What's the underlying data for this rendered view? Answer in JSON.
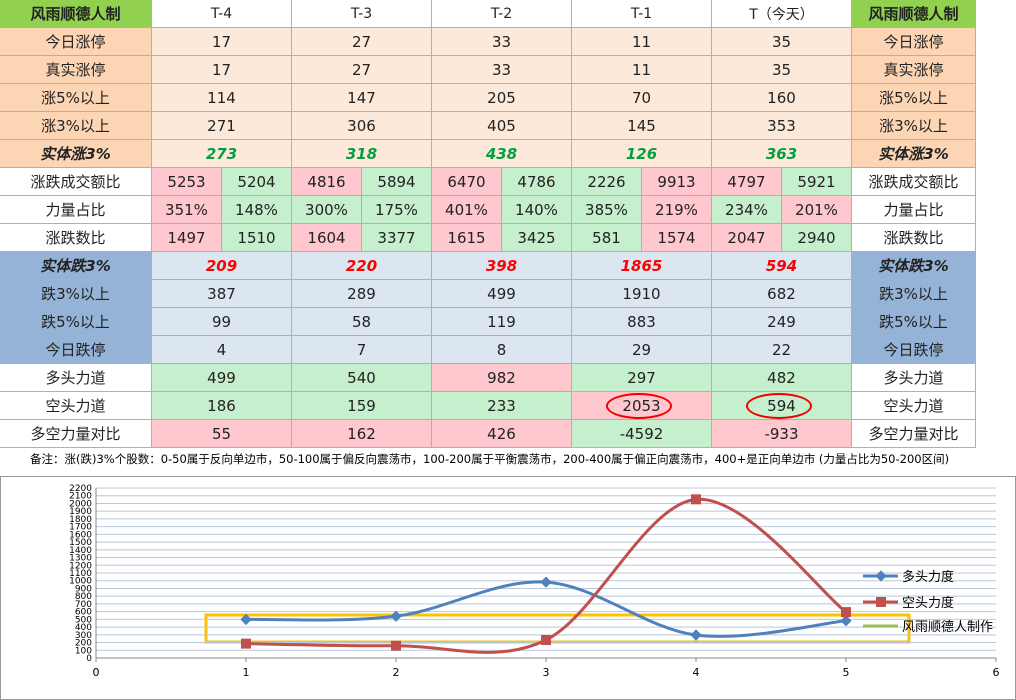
{
  "header": {
    "corner": "风雨顺德人制",
    "columns": [
      "T-4",
      "T-3",
      "T-2",
      "T-1",
      "T（今天）"
    ]
  },
  "table": {
    "rows": [
      {
        "label": "今日涨停",
        "values": [
          17,
          27,
          33,
          11,
          35
        ],
        "label_bg": "#fcd5b4",
        "bg": "#fde9d9"
      },
      {
        "label": "真实涨停",
        "values": [
          17,
          27,
          33,
          11,
          35
        ],
        "label_bg": "#fcd5b4",
        "bg": "#fde9d9"
      },
      {
        "label": "涨5%以上",
        "values": [
          114,
          147,
          205,
          70,
          160
        ],
        "label_bg": "#fcd5b4",
        "bg": "#fde9d9"
      },
      {
        "label": "涨3%以上",
        "values": [
          271,
          306,
          405,
          145,
          353
        ],
        "label_bg": "#fcd5b4",
        "bg": "#fde9d9"
      },
      {
        "label": "实体涨3%",
        "values": [
          273,
          318,
          438,
          126,
          363
        ],
        "label_bg": "#fcd5b4",
        "bg": "#fde9d9",
        "emphasis": true,
        "text_color": "#00a040"
      },
      {
        "label": "涨跌成交额比",
        "values": [
          [
            5253,
            5204
          ],
          [
            4816,
            5894
          ],
          [
            6470,
            4786
          ],
          [
            2226,
            9913
          ],
          [
            4797,
            5921
          ]
        ],
        "label_bg": "#ffffff",
        "colors": [
          [
            "#ffc7ce",
            "#c6efce"
          ],
          [
            "#ffc7ce",
            "#c6efce"
          ],
          [
            "#ffc7ce",
            "#c6efce"
          ],
          [
            "#c6efce",
            "#ffc7ce"
          ],
          [
            "#ffc7ce",
            "#c6efce"
          ]
        ]
      },
      {
        "label": "力量占比",
        "values": [
          [
            "351%",
            "148%"
          ],
          [
            "300%",
            "175%"
          ],
          [
            "401%",
            "140%"
          ],
          [
            "385%",
            "219%"
          ],
          [
            "234%",
            "201%"
          ]
        ],
        "label_bg": "#ffffff",
        "colors": [
          [
            "#ffc7ce",
            "#c6efce"
          ],
          [
            "#c6efce",
            "#c6efce"
          ],
          [
            "#ffc7ce",
            "#c6efce"
          ],
          [
            "#c6efce",
            "#ffc7ce"
          ],
          [
            "#c6efce",
            "#ffc7ce"
          ]
        ]
      },
      {
        "label": "涨跌数比",
        "values": [
          [
            1497,
            1510
          ],
          [
            1604,
            3377
          ],
          [
            1615,
            3425
          ],
          [
            581,
            1574
          ],
          [
            2047,
            2940
          ]
        ],
        "label_bg": "#ffffff",
        "colors": [
          [
            "#ffc7ce",
            "#c6efce"
          ],
          [
            "#ffc7ce",
            "#c6efce"
          ],
          [
            "#ffc7ce",
            "#c6efce"
          ],
          [
            "#c6efce",
            "#ffc7ce"
          ],
          [
            "#ffc7ce",
            "#c6efce"
          ]
        ]
      },
      {
        "label": "实体跌3%",
        "values": [
          209,
          220,
          398,
          1865,
          594
        ],
        "label_bg": "#95b3d7",
        "bg": "#dce6f1",
        "emphasis": true,
        "text_color": "#ff0000"
      },
      {
        "label": "跌3%以上",
        "values": [
          387,
          289,
          499,
          1910,
          682
        ],
        "label_bg": "#95b3d7",
        "bg": "#dce6f1"
      },
      {
        "label": "跌5%以上",
        "values": [
          99,
          58,
          119,
          883,
          249
        ],
        "label_bg": "#95b3d7",
        "bg": "#dce6f1"
      },
      {
        "label": "今日跌停",
        "values": [
          4,
          7,
          8,
          29,
          22
        ],
        "label_bg": "#95b3d7",
        "bg": "#dce6f1"
      },
      {
        "label": "多头力道",
        "values": [
          499,
          540,
          982,
          297,
          482
        ],
        "label_bg": "#ffffff",
        "colors": [
          "#c6efce",
          "#c6efce",
          "#ffc7ce",
          "#c6efce",
          "#c6efce"
        ]
      },
      {
        "label": "空头力道",
        "values": [
          186,
          159,
          233,
          2053,
          594
        ],
        "label_bg": "#ffffff",
        "colors": [
          "#c6efce",
          "#c6efce",
          "#c6efce",
          "#ffc7ce",
          "#c6efce"
        ],
        "circled": [
          false,
          false,
          false,
          true,
          true
        ]
      },
      {
        "label": "多空力量对比",
        "values": [
          55,
          162,
          426,
          -4592,
          -933
        ],
        "label_bg": "#ffffff",
        "colors": [
          "#ffc7ce",
          "#ffc7ce",
          "#ffc7ce",
          "#c6efce",
          "#ffc7ce"
        ]
      }
    ]
  },
  "note": "备注：涨(跌)3%个股数：0-50属于反向单边市，50-100属于偏反向震荡市，100-200属于平衡震荡市，200-400属于偏正向震荡市，400+是正向单边市 (力量占比为50-200区间)",
  "chart_data": {
    "type": "line",
    "x": [
      1,
      2,
      3,
      4,
      5
    ],
    "series": [
      {
        "name": "多头力度",
        "color": "#4f81bd",
        "values": [
          499,
          540,
          982,
          297,
          482
        ]
      },
      {
        "name": "空头力度",
        "color": "#c0504d",
        "values": [
          186,
          159,
          233,
          2053,
          594
        ]
      }
    ],
    "extra_legend": {
      "name": "风雨顺德人制作",
      "color": "#9bbb59"
    },
    "xlim": [
      0,
      6
    ],
    "xticks": [
      0,
      1,
      2,
      3,
      4,
      5,
      6
    ],
    "ylim": [
      0,
      2200
    ],
    "yticks": [
      0,
      100,
      200,
      300,
      400,
      500,
      600,
      700,
      800,
      900,
      1000,
      1100,
      1200,
      1300,
      1400,
      1500,
      1600,
      1700,
      1800,
      1900,
      2000,
      2100,
      2200
    ],
    "grid": true,
    "smooth": true
  }
}
